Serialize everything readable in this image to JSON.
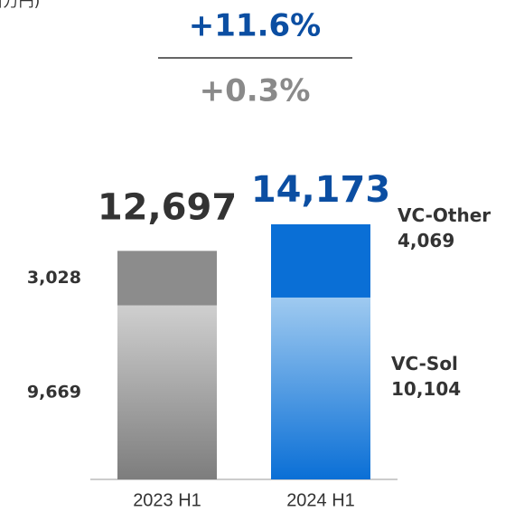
{
  "chart_data": {
    "type": "bar",
    "stacked": true,
    "unit": "(百万円)",
    "annotations": [
      "+11.6%",
      "+0.3%"
    ],
    "categories": [
      "2023 H1",
      "2024 H1"
    ],
    "series": [
      {
        "name": "VC-Sol",
        "colors": [
          "#a8a8a8",
          "#4f9fe6"
        ],
        "values": [
          9669,
          10104
        ],
        "value_labels": [
          "9,669",
          "10,104"
        ]
      },
      {
        "name": "VC-Other",
        "colors": [
          "#8c8c8c",
          "#0a6fd6"
        ],
        "values": [
          3028,
          4069
        ],
        "value_labels": [
          "3,028",
          "4,069"
        ]
      }
    ],
    "totals": {
      "values": [
        12697,
        14173
      ],
      "value_labels": [
        "12,697",
        "14,173"
      ],
      "colors": [
        "#333333",
        "#0b4ea2"
      ]
    }
  }
}
